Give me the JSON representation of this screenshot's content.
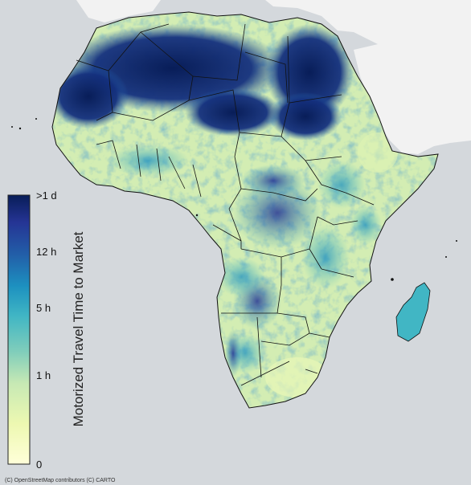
{
  "colorbar": {
    "title": "Motorized Travel Time to Market",
    "ticks": [
      {
        "label": ">1 d",
        "fraction": 1.0
      },
      {
        "label": "12 h",
        "fraction": 0.76
      },
      {
        "label": "5 h",
        "fraction": 0.555
      },
      {
        "label": "1 h",
        "fraction": 0.317
      },
      {
        "label": "0",
        "fraction": 0.0
      }
    ],
    "colors": [
      "#ffffd9",
      "#edf8b1",
      "#c7e9b4",
      "#7fcdbb",
      "#41b6c4",
      "#1d91c0",
      "#225ea8",
      "#253494",
      "#081d58"
    ]
  },
  "map": {
    "basemap_land_color": "#f2f2f2",
    "basemap_water_color": "#d4d8dc",
    "border_color": "#111111"
  },
  "attribution": "(C) OpenStreetMap contributors (C) CARTO"
}
